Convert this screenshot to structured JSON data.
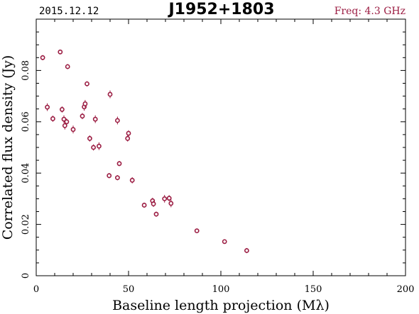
{
  "header": {
    "date": "2015.12.12",
    "source": "J1952+1803",
    "frequency": "Freq: 4.3 GHz"
  },
  "colors": {
    "points": "#9b1c42",
    "freq_text": "#9b1c42",
    "axes": "#000000"
  },
  "chart_data": {
    "type": "scatter",
    "title": "J1952+1803",
    "xlabel": "Baseline length projection (Mλ)",
    "ylabel": "Correlated flux density (Jy)",
    "xlim": [
      0,
      200
    ],
    "ylim": [
      0,
      0.1
    ],
    "xticks": [
      0,
      50,
      100,
      150,
      200
    ],
    "xtick_labels": [
      "0",
      "50",
      "100",
      "150",
      "200"
    ],
    "yticks": [
      0,
      0.02,
      0.04,
      0.06,
      0.08
    ],
    "ytick_labels": [
      "0",
      "0.02",
      "0.04",
      "0.06",
      "0.08"
    ],
    "grid": false,
    "series": [
      {
        "points": [
          {
            "x": 3.5,
            "y": 0.085,
            "err": 0.001
          },
          {
            "x": 6.0,
            "y": 0.0657,
            "err": 0.0015
          },
          {
            "x": 9.0,
            "y": 0.0612,
            "err": 0.0012
          },
          {
            "x": 13.0,
            "y": 0.0872,
            "err": 0.0008
          },
          {
            "x": 14.0,
            "y": 0.0648,
            "err": 0.0012
          },
          {
            "x": 15.0,
            "y": 0.061,
            "err": 0.0015
          },
          {
            "x": 15.5,
            "y": 0.0585,
            "err": 0.0015
          },
          {
            "x": 16.5,
            "y": 0.06,
            "err": 0.0012
          },
          {
            "x": 17.0,
            "y": 0.0815,
            "err": 0.001
          },
          {
            "x": 20.0,
            "y": 0.057,
            "err": 0.0015
          },
          {
            "x": 25.0,
            "y": 0.0622,
            "err": 0.0012
          },
          {
            "x": 26.0,
            "y": 0.0658,
            "err": 0.0015
          },
          {
            "x": 26.5,
            "y": 0.067,
            "err": 0.0015
          },
          {
            "x": 27.5,
            "y": 0.0748,
            "err": 0.001
          },
          {
            "x": 29.0,
            "y": 0.0535,
            "err": 0.0012
          },
          {
            "x": 31.0,
            "y": 0.05,
            "err": 0.0012
          },
          {
            "x": 32.0,
            "y": 0.061,
            "err": 0.0015
          },
          {
            "x": 34.0,
            "y": 0.0505,
            "err": 0.0015
          },
          {
            "x": 39.5,
            "y": 0.039,
            "err": 0.001
          },
          {
            "x": 40.0,
            "y": 0.0707,
            "err": 0.0015
          },
          {
            "x": 44.0,
            "y": 0.0605,
            "err": 0.0015
          },
          {
            "x": 44.0,
            "y": 0.0382,
            "err": 0.001
          },
          {
            "x": 45.0,
            "y": 0.0437,
            "err": 0.001
          },
          {
            "x": 49.5,
            "y": 0.0535,
            "err": 0.0012
          },
          {
            "x": 50.0,
            "y": 0.0555,
            "err": 0.0012
          },
          {
            "x": 52.0,
            "y": 0.0372,
            "err": 0.0012
          },
          {
            "x": 58.5,
            "y": 0.0275,
            "err": 0.001
          },
          {
            "x": 63.0,
            "y": 0.0292,
            "err": 0.0012
          },
          {
            "x": 63.5,
            "y": 0.028,
            "err": 0.0012
          },
          {
            "x": 65.0,
            "y": 0.024,
            "err": 0.001
          },
          {
            "x": 69.5,
            "y": 0.03,
            "err": 0.0015
          },
          {
            "x": 72.0,
            "y": 0.0302,
            "err": 0.0012
          },
          {
            "x": 73.0,
            "y": 0.0282,
            "err": 0.0015
          },
          {
            "x": 87.0,
            "y": 0.0175,
            "err": 0.0008
          },
          {
            "x": 102.0,
            "y": 0.0133,
            "err": 0.0008
          },
          {
            "x": 114.0,
            "y": 0.0098,
            "err": 0.001
          }
        ]
      }
    ]
  }
}
